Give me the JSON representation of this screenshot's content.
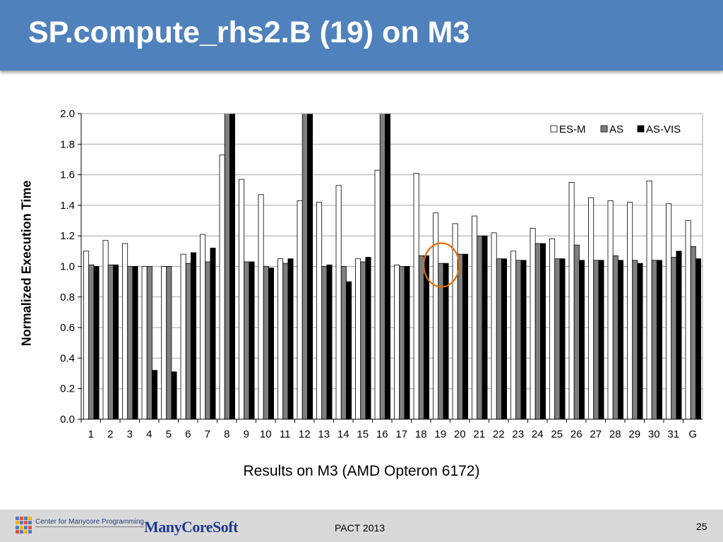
{
  "slide": {
    "title": "SP.compute_rhs2.B (19) on M3",
    "footer": {
      "conference": "PACT 2013",
      "page_number": "25",
      "logo_center": "Center for Manycore Programming",
      "logo_manycoresoft": "ManyCoreSoft"
    }
  },
  "chart_data": {
    "type": "bar",
    "xlabel": "Results on M3 (AMD Opteron 6172)",
    "ylabel": "Normalized Execution Time",
    "ylim": [
      0,
      2.0
    ],
    "yticks": [
      "0.0",
      "0.2",
      "0.4",
      "0.6",
      "0.8",
      "1.0",
      "1.2",
      "1.4",
      "1.6",
      "1.8",
      "2.0"
    ],
    "grid": true,
    "legend_position": "top-right",
    "categories": [
      "1",
      "2",
      "3",
      "4",
      "5",
      "6",
      "7",
      "8",
      "9",
      "10",
      "11",
      "12",
      "13",
      "14",
      "15",
      "16",
      "17",
      "18",
      "19",
      "20",
      "21",
      "22",
      "23",
      "24",
      "25",
      "26",
      "27",
      "28",
      "29",
      "30",
      "31",
      "G"
    ],
    "series": [
      {
        "name": "ES-M",
        "color": "#ffffff",
        "values": [
          1.1,
          1.17,
          1.15,
          1.0,
          1.0,
          1.08,
          1.21,
          1.73,
          1.57,
          1.47,
          1.05,
          1.43,
          1.42,
          1.53,
          1.05,
          1.63,
          1.01,
          1.61,
          1.35,
          1.28,
          1.33,
          1.22,
          1.1,
          1.25,
          1.18,
          1.55,
          1.45,
          1.43,
          1.42,
          1.56,
          1.41,
          1.3
        ]
      },
      {
        "name": "AS",
        "color": "#7f7f7f",
        "values": [
          1.01,
          1.01,
          1.0,
          1.0,
          1.0,
          1.02,
          1.03,
          2.0,
          1.03,
          1.0,
          1.02,
          2.0,
          1.0,
          1.0,
          1.03,
          2.0,
          1.0,
          1.07,
          1.02,
          1.08,
          1.2,
          1.05,
          1.04,
          1.15,
          1.05,
          1.14,
          1.04,
          1.07,
          1.04,
          1.04,
          1.06,
          1.13
        ]
      },
      {
        "name": "AS-VIS",
        "color": "#000000",
        "values": [
          1.0,
          1.01,
          1.0,
          0.32,
          0.31,
          1.09,
          1.12,
          2.0,
          1.03,
          0.99,
          1.05,
          2.0,
          1.01,
          0.9,
          1.06,
          2.0,
          1.0,
          1.07,
          1.02,
          1.08,
          1.2,
          1.05,
          1.04,
          1.15,
          1.05,
          1.04,
          1.04,
          1.04,
          1.02,
          1.04,
          1.1,
          1.05
        ]
      }
    ],
    "highlight": {
      "category": "19",
      "shape": "ellipse",
      "color": "#e36c09"
    }
  }
}
